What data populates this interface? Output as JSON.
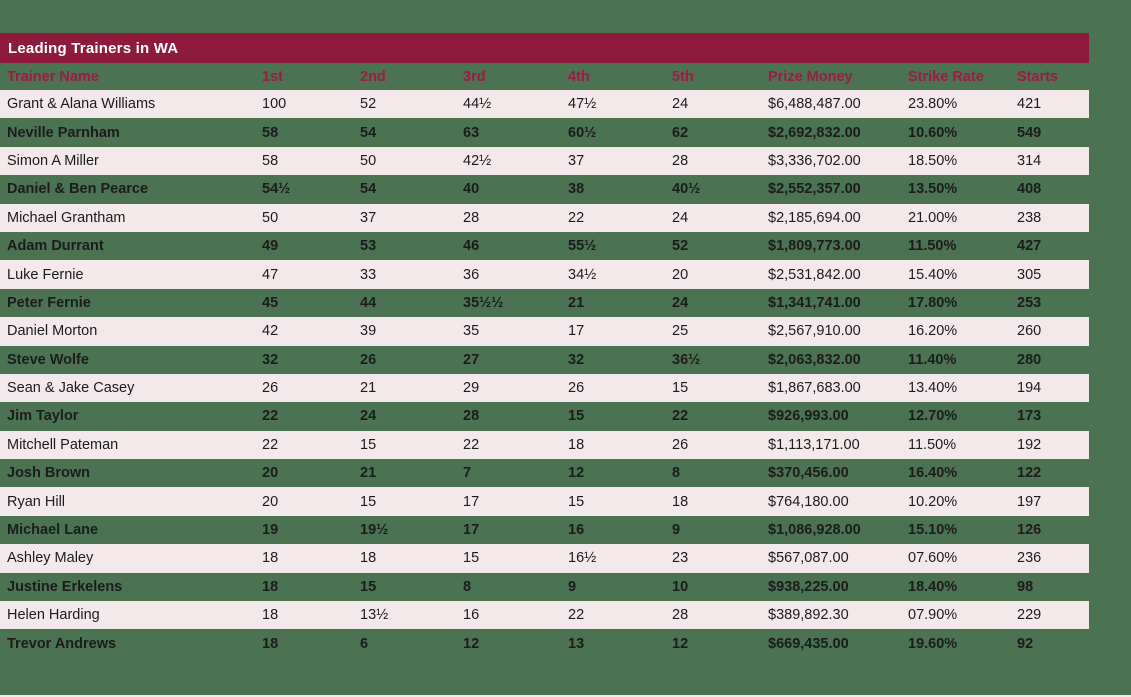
{
  "theme": {
    "background_green": "#4b7351",
    "bar_maroon": "#8e1a3d",
    "header_text_maroon": "#9d1c43",
    "row_alt_pink": "#f3e8ea",
    "cell_text": "#1c1c1c",
    "title_text": "#ffffff"
  },
  "table": {
    "title": "Leading Trainers in WA",
    "columns": [
      "Trainer Name",
      "1st",
      "2nd",
      "3rd",
      "4th",
      "5th",
      "Prize Money",
      "Strike Rate",
      "Starts"
    ],
    "rows": [
      [
        "Grant & Alana Williams",
        "100",
        "52",
        "44½",
        "47½",
        "24",
        "$6,488,487.00",
        "23.80%",
        "421"
      ],
      [
        "Neville Parnham",
        "58",
        "54",
        "63",
        "60½",
        "62",
        "$2,692,832.00",
        "10.60%",
        "549"
      ],
      [
        "Simon A Miller",
        "58",
        "50",
        "42½",
        "37",
        "28",
        "$3,336,702.00",
        "18.50%",
        "314"
      ],
      [
        "Daniel & Ben Pearce",
        "54½",
        "54",
        "40",
        "38",
        "40½",
        "$2,552,357.00",
        "13.50%",
        "408"
      ],
      [
        "Michael Grantham",
        "50",
        "37",
        "28",
        "22",
        "24",
        "$2,185,694.00",
        "21.00%",
        "238"
      ],
      [
        "Adam Durrant",
        "49",
        "53",
        "46",
        "55½",
        "52",
        "$1,809,773.00",
        "11.50%",
        "427"
      ],
      [
        "Luke Fernie",
        "47",
        "33",
        "36",
        "34½",
        "20",
        "$2,531,842.00",
        "15.40%",
        "305"
      ],
      [
        "Peter Fernie",
        "45",
        "44",
        "35½½",
        "21",
        "24",
        "$1,341,741.00",
        "17.80%",
        "253"
      ],
      [
        "Daniel Morton",
        "42",
        "39",
        "35",
        "17",
        "25",
        "$2,567,910.00",
        "16.20%",
        "260"
      ],
      [
        "Steve Wolfe",
        "32",
        "26",
        "27",
        "32",
        "36½",
        "$2,063,832.00",
        "11.40%",
        "280"
      ],
      [
        "Sean & Jake Casey",
        "26",
        "21",
        "29",
        "26",
        "15",
        "$1,867,683.00",
        "13.40%",
        "194"
      ],
      [
        "Jim Taylor",
        "22",
        "24",
        "28",
        "15",
        "22",
        "$926,993.00",
        "12.70%",
        "173"
      ],
      [
        "Mitchell Pateman",
        "22",
        "15",
        "22",
        "18",
        "26",
        "$1,113,171.00",
        "11.50%",
        "192"
      ],
      [
        "Josh Brown",
        "20",
        "21",
        "7",
        "12",
        "8",
        "$370,456.00",
        "16.40%",
        "122"
      ],
      [
        "Ryan Hill",
        "20",
        "15",
        "17",
        "15",
        "18",
        "$764,180.00",
        "10.20%",
        "197"
      ],
      [
        "Michael Lane",
        "19",
        "19½",
        "17",
        "16",
        "9",
        "$1,086,928.00",
        "15.10%",
        "126"
      ],
      [
        "Ashley Maley",
        "18",
        "18",
        "15",
        "16½",
        "23",
        "$567,087.00",
        "07.60%",
        "236"
      ],
      [
        "Justine Erkelens",
        "18",
        "15",
        "8",
        "9",
        "10",
        "$938,225.00",
        "18.40%",
        "98"
      ],
      [
        "Helen Harding",
        "18",
        "13½",
        "16",
        "22",
        "28",
        "$389,892.30",
        "07.90%",
        "229"
      ],
      [
        "Trevor Andrews",
        "18",
        "6",
        "12",
        "13",
        "12",
        "$669,435.00",
        "19.60%",
        "92"
      ]
    ]
  },
  "chart_data": {
    "type": "table",
    "title": "Leading Trainers in WA",
    "columns": [
      "Trainer Name",
      "1st",
      "2nd",
      "3rd",
      "4th",
      "5th",
      "Prize Money",
      "Strike Rate",
      "Starts"
    ],
    "rows": [
      {
        "trainer": "Grant & Alana Williams",
        "first": "100",
        "second": "52",
        "third": "44½",
        "fourth": "47½",
        "fifth": "24",
        "prize_money": "$6,488,487.00",
        "strike_rate": "23.80%",
        "starts": 421
      },
      {
        "trainer": "Neville Parnham",
        "first": "58",
        "second": "54",
        "third": "63",
        "fourth": "60½",
        "fifth": "62",
        "prize_money": "$2,692,832.00",
        "strike_rate": "10.60%",
        "starts": 549
      },
      {
        "trainer": "Simon A Miller",
        "first": "58",
        "second": "50",
        "third": "42½",
        "fourth": "37",
        "fifth": "28",
        "prize_money": "$3,336,702.00",
        "strike_rate": "18.50%",
        "starts": 314
      },
      {
        "trainer": "Daniel & Ben Pearce",
        "first": "54½",
        "second": "54",
        "third": "40",
        "fourth": "38",
        "fifth": "40½",
        "prize_money": "$2,552,357.00",
        "strike_rate": "13.50%",
        "starts": 408
      },
      {
        "trainer": "Michael Grantham",
        "first": "50",
        "second": "37",
        "third": "28",
        "fourth": "22",
        "fifth": "24",
        "prize_money": "$2,185,694.00",
        "strike_rate": "21.00%",
        "starts": 238
      },
      {
        "trainer": "Adam Durrant",
        "first": "49",
        "second": "53",
        "third": "46",
        "fourth": "55½",
        "fifth": "52",
        "prize_money": "$1,809,773.00",
        "strike_rate": "11.50%",
        "starts": 427
      },
      {
        "trainer": "Luke Fernie",
        "first": "47",
        "second": "33",
        "third": "36",
        "fourth": "34½",
        "fifth": "20",
        "prize_money": "$2,531,842.00",
        "strike_rate": "15.40%",
        "starts": 305
      },
      {
        "trainer": "Peter Fernie",
        "first": "45",
        "second": "44",
        "third": "35½½",
        "fourth": "21",
        "fifth": "24",
        "prize_money": "$1,341,741.00",
        "strike_rate": "17.80%",
        "starts": 253
      },
      {
        "trainer": "Daniel Morton",
        "first": "42",
        "second": "39",
        "third": "35",
        "fourth": "17",
        "fifth": "25",
        "prize_money": "$2,567,910.00",
        "strike_rate": "16.20%",
        "starts": 260
      },
      {
        "trainer": "Steve Wolfe",
        "first": "32",
        "second": "26",
        "third": "27",
        "fourth": "32",
        "fifth": "36½",
        "prize_money": "$2,063,832.00",
        "strike_rate": "11.40%",
        "starts": 280
      },
      {
        "trainer": "Sean & Jake Casey",
        "first": "26",
        "second": "21",
        "third": "29",
        "fourth": "26",
        "fifth": "15",
        "prize_money": "$1,867,683.00",
        "strike_rate": "13.40%",
        "starts": 194
      },
      {
        "trainer": "Jim Taylor",
        "first": "22",
        "second": "24",
        "third": "28",
        "fourth": "15",
        "fifth": "22",
        "prize_money": "$926,993.00",
        "strike_rate": "12.70%",
        "starts": 173
      },
      {
        "trainer": "Mitchell Pateman",
        "first": "22",
        "second": "15",
        "third": "22",
        "fourth": "18",
        "fifth": "26",
        "prize_money": "$1,113,171.00",
        "strike_rate": "11.50%",
        "starts": 192
      },
      {
        "trainer": "Josh Brown",
        "first": "20",
        "second": "21",
        "third": "7",
        "fourth": "12",
        "fifth": "8",
        "prize_money": "$370,456.00",
        "strike_rate": "16.40%",
        "starts": 122
      },
      {
        "trainer": "Ryan Hill",
        "first": "20",
        "second": "15",
        "third": "17",
        "fourth": "15",
        "fifth": "18",
        "prize_money": "$764,180.00",
        "strike_rate": "10.20%",
        "starts": 197
      },
      {
        "trainer": "Michael Lane",
        "first": "19",
        "second": "19½",
        "third": "17",
        "fourth": "16",
        "fifth": "9",
        "prize_money": "$1,086,928.00",
        "strike_rate": "15.10%",
        "starts": 126
      },
      {
        "trainer": "Ashley Maley",
        "first": "18",
        "second": "18",
        "third": "15",
        "fourth": "16½",
        "fifth": "23",
        "prize_money": "$567,087.00",
        "strike_rate": "07.60%",
        "starts": 236
      },
      {
        "trainer": "Justine Erkelens",
        "first": "18",
        "second": "15",
        "third": "8",
        "fourth": "9",
        "fifth": "10",
        "prize_money": "$938,225.00",
        "strike_rate": "18.40%",
        "starts": 98
      },
      {
        "trainer": "Helen Harding",
        "first": "18",
        "second": "13½",
        "third": "16",
        "fourth": "22",
        "fifth": "28",
        "prize_money": "$389,892.30",
        "strike_rate": "07.90%",
        "starts": 229
      },
      {
        "trainer": "Trevor Andrews",
        "first": "18",
        "second": "6",
        "third": "12",
        "fourth": "13",
        "fifth": "12",
        "prize_money": "$669,435.00",
        "strike_rate": "19.60%",
        "starts": 92
      }
    ]
  }
}
